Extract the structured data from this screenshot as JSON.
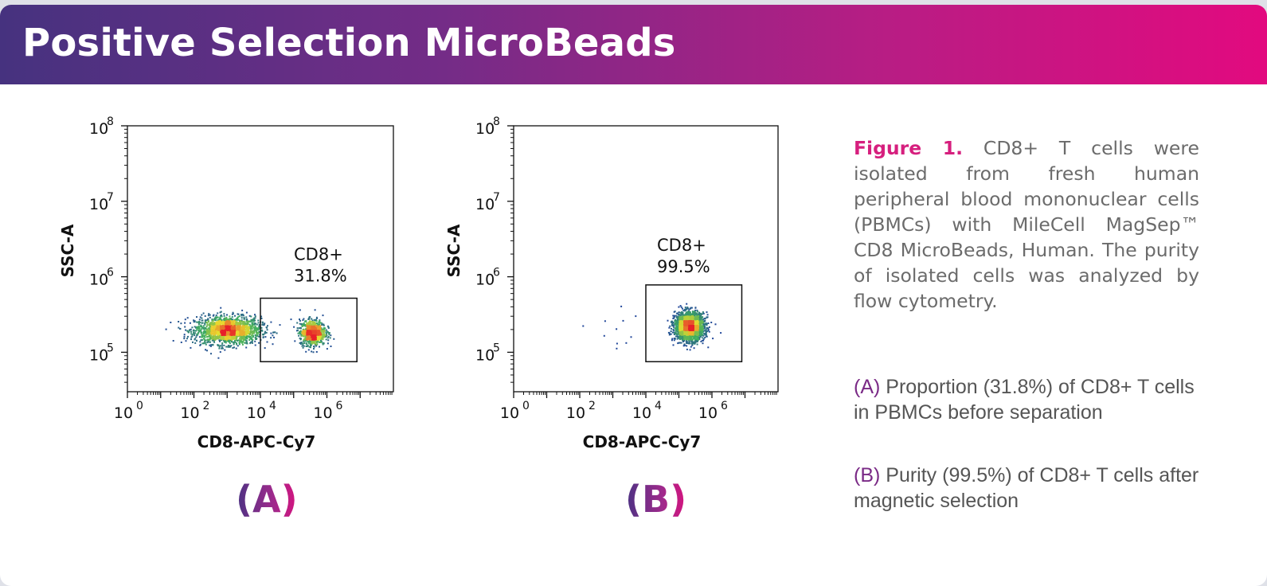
{
  "header": {
    "title": "Positive Selection MicroBeads"
  },
  "caption": {
    "figure_label": "Figure 1.",
    "text": "CD8+ T cells were isolated from fresh human peripheral blood mononuclear cells (PBMCs) with MileCell MagSep™ CD8 MicroBeads, Human. The purity of isolated cells was analyzed by flow cytometry."
  },
  "notes": [
    {
      "tag": "(A)",
      "text": "Proportion (31.8%) of CD8+ T cells in PBMCs before separation"
    },
    {
      "tag": "(B)",
      "text": "Purity (99.5%) of CD8+ T cells after magnetic selection"
    }
  ],
  "colors": {
    "banner_start": "#46327f",
    "banner_end": "#e20a7f",
    "accent": "#d61f7e",
    "density_low": "#1f3f9e",
    "density_mid": "#3fae5f",
    "density_high": "#e8dc2e",
    "density_peak": "#e8202a"
  },
  "chart_data": [
    {
      "type": "scatter",
      "panel_label": "(A)",
      "xlabel": "CD8-APC-Cy7",
      "ylabel": "SSC-A",
      "x_scale": "log",
      "y_scale": "log",
      "xlim": [
        1,
        100000000
      ],
      "ylim": [
        30000,
        100000000
      ],
      "x_tick_values": [
        1,
        100,
        10000,
        1000000
      ],
      "x_tick_base": [
        "10",
        "10",
        "10",
        "10"
      ],
      "x_tick_exp": [
        "0",
        "2",
        "4",
        "6"
      ],
      "y_tick_values": [
        100000,
        1000000,
        10000000,
        100000000
      ],
      "y_tick_base": [
        "10",
        "10",
        "10",
        "10"
      ],
      "y_tick_exp": [
        "5",
        "6",
        "7",
        "8"
      ],
      "gate": {
        "name": "CD8+",
        "percent": "31.8%",
        "x_range": [
          10000,
          8000000
        ],
        "y_range": [
          75000,
          520000
        ]
      },
      "populations": [
        {
          "center_x_log": 3.0,
          "center_y_log": 5.3,
          "spread_x_log": 0.9,
          "spread_y_log": 0.13,
          "share": 0.68
        },
        {
          "center_x_log": 5.55,
          "center_y_log": 5.27,
          "spread_x_log": 0.35,
          "spread_y_log": 0.12,
          "share": 0.32
        }
      ]
    },
    {
      "type": "scatter",
      "panel_label": "(B)",
      "xlabel": "CD8-APC-Cy7",
      "ylabel": "SSC-A",
      "x_scale": "log",
      "y_scale": "log",
      "xlim": [
        1,
        100000000
      ],
      "ylim": [
        30000,
        100000000
      ],
      "x_tick_values": [
        1,
        100,
        10000,
        1000000
      ],
      "x_tick_base": [
        "10",
        "10",
        "10",
        "10"
      ],
      "x_tick_exp": [
        "0",
        "2",
        "4",
        "6"
      ],
      "y_tick_values": [
        100000,
        1000000,
        10000000,
        100000000
      ],
      "y_tick_base": [
        "10",
        "10",
        "10",
        "10"
      ],
      "y_tick_exp": [
        "5",
        "6",
        "7",
        "8"
      ],
      "gate": {
        "name": "CD8+",
        "percent": "99.5%",
        "x_range": [
          10000,
          8000000
        ],
        "y_range": [
          75000,
          780000
        ]
      },
      "populations": [
        {
          "center_x_log": 5.3,
          "center_y_log": 5.35,
          "spread_x_log": 0.4,
          "spread_y_log": 0.13,
          "share": 0.995
        },
        {
          "center_x_log": 3.2,
          "center_y_log": 5.3,
          "spread_x_log": 0.8,
          "spread_y_log": 0.2,
          "share": 0.005
        }
      ]
    }
  ]
}
